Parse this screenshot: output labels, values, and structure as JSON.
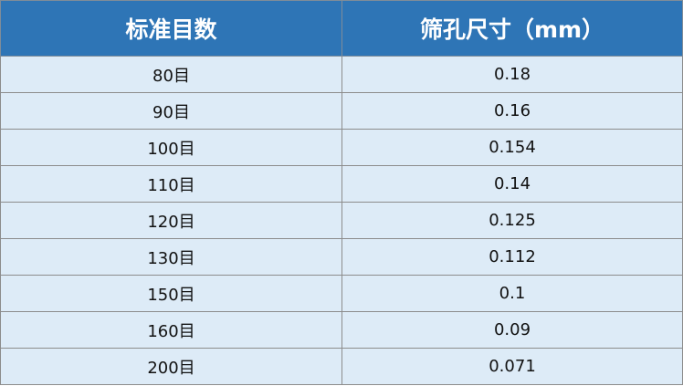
{
  "table": {
    "headers": [
      "标准目数",
      "筛孔尺寸（mm）"
    ],
    "rows": [
      [
        "80目",
        "0.18"
      ],
      [
        "90目",
        "0.16"
      ],
      [
        "100目",
        "0.154"
      ],
      [
        "110目",
        "0.14"
      ],
      [
        "120目",
        "0.125"
      ],
      [
        "130目",
        "0.112"
      ],
      [
        "150目",
        "0.1"
      ],
      [
        "160目",
        "0.09"
      ],
      [
        "200目",
        "0.071"
      ]
    ],
    "colors": {
      "header_bg": "#2E75B6",
      "row_bg": "#DDEBF7",
      "border": "#8c8c8c"
    }
  }
}
